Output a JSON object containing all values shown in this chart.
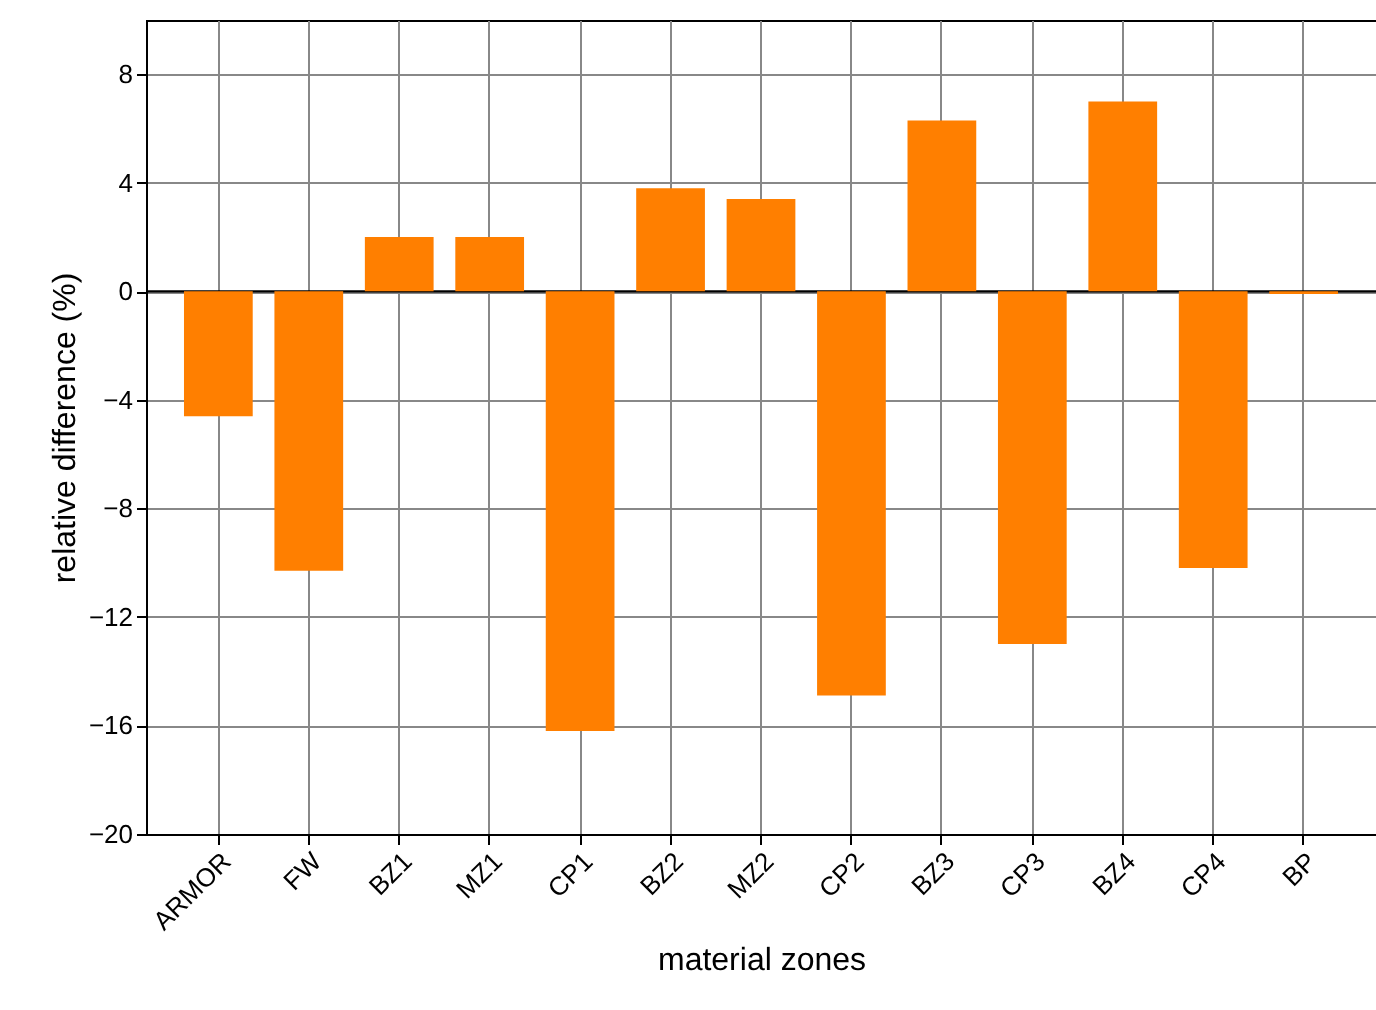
{
  "chart_data": {
    "type": "bar",
    "xlabel": "material zones",
    "ylabel": "relative difference (%)",
    "categories": [
      "ARMOR",
      "FW",
      "BZ1",
      "MZ1",
      "CP1",
      "BZ2",
      "MZ2",
      "CP2",
      "BZ3",
      "CP3",
      "BZ4",
      "CP4",
      "BP"
    ],
    "values": [
      -4.6,
      -10.3,
      2.0,
      2.0,
      -16.2,
      3.8,
      3.4,
      -14.9,
      6.3,
      -13.0,
      7.0,
      -10.2,
      -0.1
    ],
    "color": "#ff7f00",
    "ylim": [
      -20,
      10
    ],
    "yticks": [
      -20,
      -16,
      -12,
      -8,
      -4,
      0,
      4,
      8
    ],
    "grid": true,
    "ref_lines": [
      {
        "axis": "y",
        "value": 0,
        "color": "#000000"
      }
    ]
  }
}
